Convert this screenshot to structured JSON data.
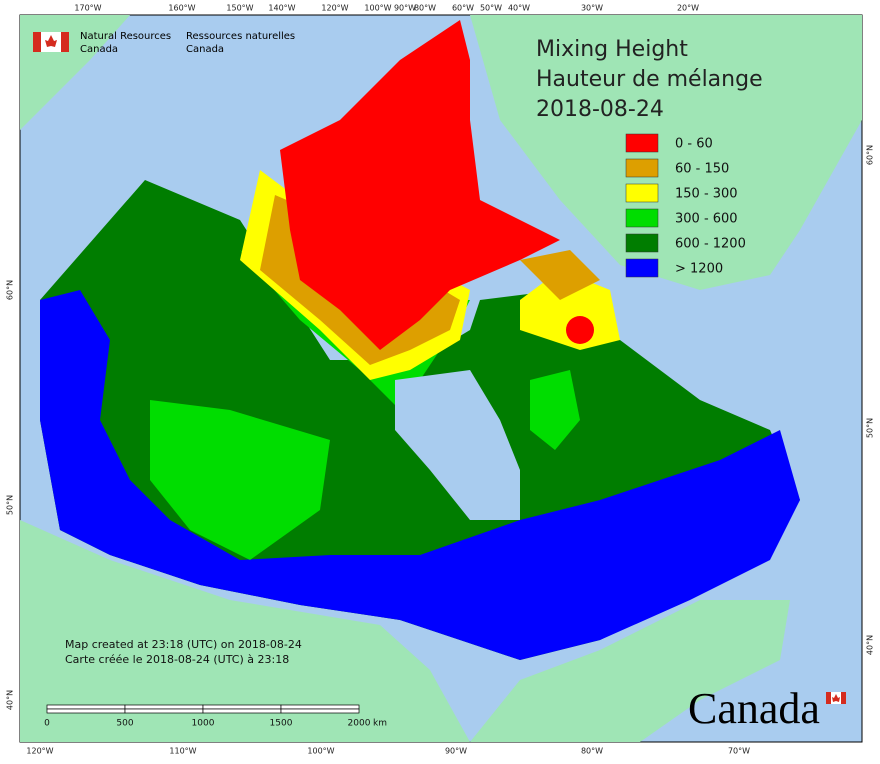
{
  "header": {
    "org_en_1": "Natural Resources",
    "org_en_2": "Canada",
    "org_fr_1": "Ressources naturelles",
    "org_fr_2": "Canada"
  },
  "title": {
    "line1": "Mixing Height",
    "line2": "Hauteur de mélange",
    "date": "2018-08-24"
  },
  "legend": {
    "items": [
      {
        "label": "0 - 60",
        "color": "#ff0000"
      },
      {
        "label": "60 - 150",
        "color": "#dd9f00"
      },
      {
        "label": "150 - 300",
        "color": "#ffff00"
      },
      {
        "label": "300 - 600",
        "color": "#00dd00"
      },
      {
        "label": "600 - 1200",
        "color": "#007d00"
      },
      {
        "label": "> 1200",
        "color": "#0000ff"
      }
    ]
  },
  "graticule": {
    "top": [
      "170°W",
      "160°W",
      "150°W",
      "140°W",
      "120°W",
      "100°W",
      "90°W",
      "80°W",
      "60°W",
      "50°W",
      "40°W",
      "30°W",
      "20°W"
    ],
    "bottom": [
      "120°W",
      "110°W",
      "100°W",
      "90°W",
      "80°W",
      "70°W"
    ],
    "left": [
      "60°N",
      "50°N",
      "40°N"
    ],
    "right": [
      "60°N",
      "50°N",
      "40°N"
    ]
  },
  "footer": {
    "created_en": "Map created at 23:18 (UTC) on 2018-08-24",
    "created_fr": "Carte créée le 2018-08-24 (UTC) à 23:18"
  },
  "scale": {
    "ticks": [
      "0",
      "500",
      "1000",
      "1500",
      "2000"
    ],
    "unit": "km"
  },
  "wordmark": "Canada"
}
